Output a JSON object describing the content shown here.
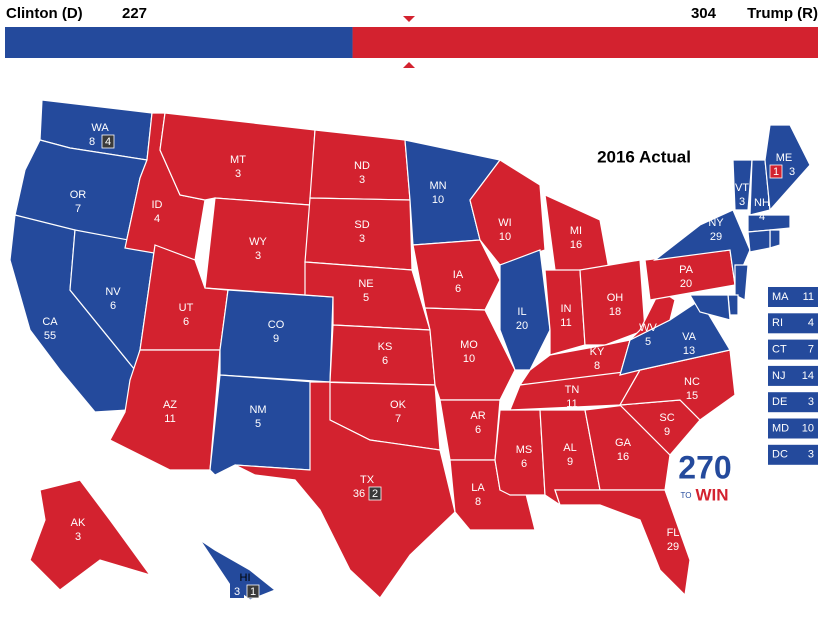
{
  "header": {
    "clinton": {
      "label": "Clinton (D)",
      "votes": 227,
      "color": "#244a9c"
    },
    "trump": {
      "label": "Trump (R)",
      "votes": 304,
      "color": "#d3222f"
    }
  },
  "title": "2016 Actual",
  "logo": {
    "number": "270",
    "small": "TO",
    "word": "WIN"
  },
  "faithless_color": "#3a3a3a",
  "states": [
    {
      "abbr": "WA",
      "votes": 8,
      "winner": "clinton",
      "extra": 4
    },
    {
      "abbr": "OR",
      "votes": 7,
      "winner": "clinton"
    },
    {
      "abbr": "CA",
      "votes": 55,
      "winner": "clinton"
    },
    {
      "abbr": "NV",
      "votes": 6,
      "winner": "clinton"
    },
    {
      "abbr": "ID",
      "votes": 4,
      "winner": "trump"
    },
    {
      "abbr": "MT",
      "votes": 3,
      "winner": "trump"
    },
    {
      "abbr": "WY",
      "votes": 3,
      "winner": "trump"
    },
    {
      "abbr": "UT",
      "votes": 6,
      "winner": "trump"
    },
    {
      "abbr": "AZ",
      "votes": 11,
      "winner": "trump"
    },
    {
      "abbr": "CO",
      "votes": 9,
      "winner": "clinton"
    },
    {
      "abbr": "NM",
      "votes": 5,
      "winner": "clinton"
    },
    {
      "abbr": "ND",
      "votes": 3,
      "winner": "trump"
    },
    {
      "abbr": "SD",
      "votes": 3,
      "winner": "trump"
    },
    {
      "abbr": "NE",
      "votes": 5,
      "winner": "trump"
    },
    {
      "abbr": "KS",
      "votes": 6,
      "winner": "trump"
    },
    {
      "abbr": "OK",
      "votes": 7,
      "winner": "trump"
    },
    {
      "abbr": "TX",
      "votes": 36,
      "winner": "trump",
      "extra": 2
    },
    {
      "abbr": "MN",
      "votes": 10,
      "winner": "clinton"
    },
    {
      "abbr": "IA",
      "votes": 6,
      "winner": "trump"
    },
    {
      "abbr": "MO",
      "votes": 10,
      "winner": "trump"
    },
    {
      "abbr": "AR",
      "votes": 6,
      "winner": "trump"
    },
    {
      "abbr": "LA",
      "votes": 8,
      "winner": "trump"
    },
    {
      "abbr": "WI",
      "votes": 10,
      "winner": "trump"
    },
    {
      "abbr": "IL",
      "votes": 20,
      "winner": "clinton"
    },
    {
      "abbr": "MI",
      "votes": 16,
      "winner": "trump"
    },
    {
      "abbr": "IN",
      "votes": 11,
      "winner": "trump"
    },
    {
      "abbr": "OH",
      "votes": 18,
      "winner": "trump"
    },
    {
      "abbr": "KY",
      "votes": 8,
      "winner": "trump"
    },
    {
      "abbr": "TN",
      "votes": 11,
      "winner": "trump"
    },
    {
      "abbr": "MS",
      "votes": 6,
      "winner": "trump"
    },
    {
      "abbr": "AL",
      "votes": 9,
      "winner": "trump"
    },
    {
      "abbr": "GA",
      "votes": 16,
      "winner": "trump"
    },
    {
      "abbr": "FL",
      "votes": 29,
      "winner": "trump"
    },
    {
      "abbr": "SC",
      "votes": 9,
      "winner": "trump"
    },
    {
      "abbr": "NC",
      "votes": 15,
      "winner": "trump"
    },
    {
      "abbr": "VA",
      "votes": 13,
      "winner": "clinton"
    },
    {
      "abbr": "WV",
      "votes": 5,
      "winner": "trump"
    },
    {
      "abbr": "PA",
      "votes": 20,
      "winner": "trump"
    },
    {
      "abbr": "NY",
      "votes": 29,
      "winner": "clinton"
    },
    {
      "abbr": "VT",
      "votes": 3,
      "winner": "clinton"
    },
    {
      "abbr": "NH",
      "votes": 4,
      "winner": "clinton"
    },
    {
      "abbr": "ME",
      "votes": 3,
      "winner": "clinton",
      "extra": 1,
      "extra_winner": "trump"
    },
    {
      "abbr": "MA",
      "votes": 11,
      "winner": "clinton"
    },
    {
      "abbr": "RI",
      "votes": 4,
      "winner": "clinton"
    },
    {
      "abbr": "CT",
      "votes": 7,
      "winner": "clinton"
    },
    {
      "abbr": "NJ",
      "votes": 14,
      "winner": "clinton"
    },
    {
      "abbr": "DE",
      "votes": 3,
      "winner": "clinton"
    },
    {
      "abbr": "MD",
      "votes": 10,
      "winner": "clinton"
    },
    {
      "abbr": "DC",
      "votes": 3,
      "winner": "clinton"
    },
    {
      "abbr": "AK",
      "votes": 3,
      "winner": "trump"
    },
    {
      "abbr": "HI",
      "votes": 3,
      "winner": "clinton",
      "extra": 1
    }
  ]
}
